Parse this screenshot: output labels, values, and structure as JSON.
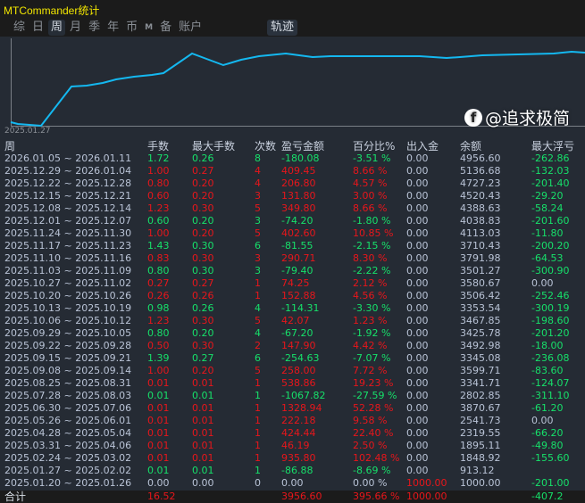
{
  "app": {
    "title": "MTCommander统计"
  },
  "tabs": [
    {
      "label": "综"
    },
    {
      "label": "日"
    },
    {
      "label": "周",
      "active": true
    },
    {
      "label": "月"
    },
    {
      "label": "季"
    },
    {
      "label": "年"
    },
    {
      "label": "币"
    },
    {
      "label": "M"
    },
    {
      "label": "备"
    },
    {
      "label": "账户"
    }
  ],
  "track_tab": "轨迹",
  "chart": {
    "type": "line",
    "start_label": "2025.01.27",
    "line_color": "#14b8f0"
  },
  "colors": {
    "profit": "#e8161b",
    "loss": "#16e06a",
    "neutral": "#b9c3d6"
  },
  "headers": [
    "周",
    "手数",
    "最大手数",
    "次数",
    "盈亏金额",
    "百分比%",
    "出入金",
    "余额",
    "最大浮亏"
  ],
  "rows": [
    {
      "tone": "green",
      "v": [
        "2026.01.05 ~ 2026.01.11",
        "1.72",
        "0.26",
        "8",
        "-180.08",
        "-3.51 %",
        "0.00",
        "4956.60",
        "-262.86"
      ]
    },
    {
      "tone": "red",
      "v": [
        "2025.12.29 ~ 2026.01.04",
        "1.00",
        "0.27",
        "4",
        "409.45",
        "8.66 %",
        "0.00",
        "5136.68",
        "-132.03"
      ]
    },
    {
      "tone": "red",
      "v": [
        "2025.12.22 ~ 2025.12.28",
        "0.80",
        "0.20",
        "4",
        "206.80",
        "4.57 %",
        "0.00",
        "4727.23",
        "-201.40"
      ]
    },
    {
      "tone": "red",
      "v": [
        "2025.12.15 ~ 2025.12.21",
        "0.60",
        "0.20",
        "3",
        "131.80",
        "3.00 %",
        "0.00",
        "4520.43",
        "-29.20"
      ]
    },
    {
      "tone": "red",
      "v": [
        "2025.12.08 ~ 2025.12.14",
        "1.23",
        "0.30",
        "5",
        "349.80",
        "8.66 %",
        "0.00",
        "4388.63",
        "-58.24"
      ]
    },
    {
      "tone": "green",
      "v": [
        "2025.12.01 ~ 2025.12.07",
        "0.60",
        "0.20",
        "3",
        "-74.20",
        "-1.80 %",
        "0.00",
        "4038.83",
        "-201.60"
      ]
    },
    {
      "tone": "red",
      "v": [
        "2025.11.24 ~ 2025.11.30",
        "1.00",
        "0.20",
        "5",
        "402.60",
        "10.85 %",
        "0.00",
        "4113.03",
        "-11.80"
      ]
    },
    {
      "tone": "green",
      "v": [
        "2025.11.17 ~ 2025.11.23",
        "1.43",
        "0.30",
        "6",
        "-81.55",
        "-2.15 %",
        "0.00",
        "3710.43",
        "-200.20"
      ]
    },
    {
      "tone": "red",
      "v": [
        "2025.11.10 ~ 2025.11.16",
        "0.83",
        "0.30",
        "3",
        "290.71",
        "8.30 %",
        "0.00",
        "3791.98",
        "-64.53"
      ]
    },
    {
      "tone": "green",
      "v": [
        "2025.11.03 ~ 2025.11.09",
        "0.80",
        "0.30",
        "3",
        "-79.40",
        "-2.22 %",
        "0.00",
        "3501.27",
        "-300.90"
      ]
    },
    {
      "tone": "red",
      "v": [
        "2025.10.27 ~ 2025.11.02",
        "0.27",
        "0.27",
        "1",
        "74.25",
        "2.12 %",
        "0.00",
        "3580.67",
        "0.00"
      ]
    },
    {
      "tone": "red",
      "v": [
        "2025.10.20 ~ 2025.10.26",
        "0.26",
        "0.26",
        "1",
        "152.88",
        "4.56 %",
        "0.00",
        "3506.42",
        "-252.46"
      ]
    },
    {
      "tone": "green",
      "v": [
        "2025.10.13 ~ 2025.10.19",
        "0.98",
        "0.26",
        "4",
        "-114.31",
        "-3.30 %",
        "0.00",
        "3353.54",
        "-300.19"
      ]
    },
    {
      "tone": "red",
      "v": [
        "2025.10.06 ~ 2025.10.12",
        "1.23",
        "0.30",
        "5",
        "42.07",
        "1.23 %",
        "0.00",
        "3467.85",
        "-198.60"
      ]
    },
    {
      "tone": "green",
      "v": [
        "2025.09.29 ~ 2025.10.05",
        "0.80",
        "0.20",
        "4",
        "-67.20",
        "-1.92 %",
        "0.00",
        "3425.78",
        "-201.20"
      ]
    },
    {
      "tone": "red",
      "v": [
        "2025.09.22 ~ 2025.09.28",
        "0.50",
        "0.30",
        "2",
        "147.90",
        "4.42 %",
        "0.00",
        "3492.98",
        "-18.00"
      ]
    },
    {
      "tone": "green",
      "v": [
        "2025.09.15 ~ 2025.09.21",
        "1.39",
        "0.27",
        "6",
        "-254.63",
        "-7.07 %",
        "0.00",
        "3345.08",
        "-236.08"
      ]
    },
    {
      "tone": "red",
      "v": [
        "2025.09.08 ~ 2025.09.14",
        "1.00",
        "0.20",
        "5",
        "258.00",
        "7.72 %",
        "0.00",
        "3599.71",
        "-83.60"
      ]
    },
    {
      "tone": "red",
      "v": [
        "2025.08.25 ~ 2025.08.31",
        "0.01",
        "0.01",
        "1",
        "538.86",
        "19.23 %",
        "0.00",
        "3341.71",
        "-124.07"
      ]
    },
    {
      "tone": "green",
      "v": [
        "2025.07.28 ~ 2025.08.03",
        "0.01",
        "0.01",
        "1",
        "-1067.82",
        "-27.59 %",
        "0.00",
        "2802.85",
        "-311.10"
      ]
    },
    {
      "tone": "red",
      "v": [
        "2025.06.30 ~ 2025.07.06",
        "0.01",
        "0.01",
        "1",
        "1328.94",
        "52.28 %",
        "0.00",
        "3870.67",
        "-61.20"
      ]
    },
    {
      "tone": "red",
      "v": [
        "2025.05.26 ~ 2025.06.01",
        "0.01",
        "0.01",
        "1",
        "222.18",
        "9.58 %",
        "0.00",
        "2541.73",
        "0.00"
      ]
    },
    {
      "tone": "red",
      "v": [
        "2025.04.28 ~ 2025.05.04",
        "0.01",
        "0.01",
        "1",
        "424.44",
        "22.40 %",
        "0.00",
        "2319.55",
        "-66.20"
      ]
    },
    {
      "tone": "red",
      "v": [
        "2025.03.31 ~ 2025.04.06",
        "0.01",
        "0.01",
        "1",
        "46.19",
        "2.50 %",
        "0.00",
        "1895.11",
        "-49.80"
      ]
    },
    {
      "tone": "red",
      "v": [
        "2025.02.24 ~ 2025.03.02",
        "0.01",
        "0.01",
        "1",
        "935.80",
        "102.48 %",
        "0.00",
        "1848.92",
        "-155.60"
      ]
    },
    {
      "tone": "green",
      "v": [
        "2025.01.27 ~ 2025.02.02",
        "0.01",
        "0.01",
        "1",
        "-86.88",
        "-8.69 %",
        "0.00",
        "913.12",
        ""
      ]
    },
    {
      "tone": "plain",
      "v": [
        "2025.01.20 ~ 2025.01.26",
        "0.00",
        "0.00",
        "0",
        "0.00",
        "0.00 %",
        "1000.00",
        "1000.00",
        "-201.00"
      ]
    }
  ],
  "total": {
    "label": "合计",
    "lots": "16.52",
    "profit": "3956.60",
    "percent": "395.66 %",
    "deposit": "1000.00",
    "max_float": "-407.2"
  },
  "watermark": "@追求极简"
}
